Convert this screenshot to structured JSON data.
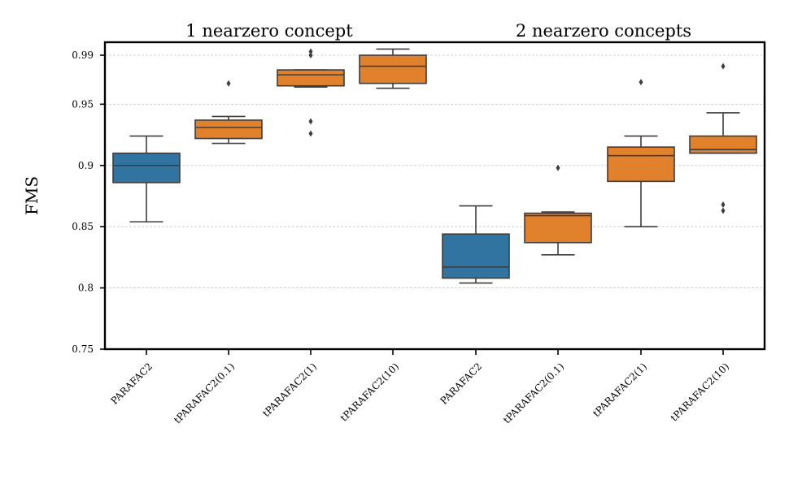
{
  "chart_data": {
    "type": "box",
    "ylabel": "FMS",
    "yticks": [
      "0.75",
      "0.8",
      "0.85",
      "0.9",
      "0.95",
      "0.99"
    ],
    "ytick_values": [
      0.75,
      0.8,
      0.85,
      0.9,
      0.95,
      0.99
    ],
    "ylim": [
      0.75,
      1.0
    ],
    "grid": "horizontal dashed",
    "colors": {
      "PARAFAC2": "#3274a1",
      "tPARAFAC2": "#e1812c"
    },
    "groups": [
      {
        "title": "1 nearzero concept",
        "boxes": [
          {
            "label": "PARAFAC2",
            "color": "#3274a1",
            "whisker_low": 0.854,
            "q1": 0.886,
            "median": 0.9,
            "q3": 0.91,
            "whisker_high": 0.924,
            "outliers": []
          },
          {
            "label": "tPARAFAC2(0.1)",
            "color": "#e1812c",
            "whisker_low": 0.918,
            "q1": 0.922,
            "median": 0.931,
            "q3": 0.937,
            "whisker_high": 0.94,
            "outliers": [
              0.967
            ]
          },
          {
            "label": "tPARAFAC2(1)",
            "color": "#e1812c",
            "whisker_low": 0.964,
            "q1": 0.965,
            "median": 0.974,
            "q3": 0.978,
            "whisker_high": 0.978,
            "outliers": [
              0.926,
              0.936,
              0.99,
              0.993
            ]
          },
          {
            "label": "tPARAFAC2(10)",
            "color": "#e1812c",
            "whisker_low": 0.963,
            "q1": 0.967,
            "median": 0.981,
            "q3": 0.99,
            "whisker_high": 0.995,
            "outliers": []
          }
        ]
      },
      {
        "title": "2 nearzero concepts",
        "boxes": [
          {
            "label": "PARAFAC2",
            "color": "#3274a1",
            "whisker_low": 0.804,
            "q1": 0.808,
            "median": 0.817,
            "q3": 0.844,
            "whisker_high": 0.867,
            "outliers": []
          },
          {
            "label": "tPARAFAC2(0.1)",
            "color": "#e1812c",
            "whisker_low": 0.827,
            "q1": 0.837,
            "median": 0.859,
            "q3": 0.861,
            "whisker_high": 0.862,
            "outliers": [
              0.898
            ]
          },
          {
            "label": "tPARAFAC2(1)",
            "color": "#e1812c",
            "whisker_low": 0.85,
            "q1": 0.887,
            "median": 0.908,
            "q3": 0.915,
            "whisker_high": 0.924,
            "outliers": [
              0.968
            ]
          },
          {
            "label": "tPARAFAC2(10)",
            "color": "#e1812c",
            "whisker_low": 0.91,
            "q1": 0.91,
            "median": 0.913,
            "q3": 0.924,
            "whisker_high": 0.943,
            "outliers": [
              0.863,
              0.868,
              0.981
            ]
          }
        ]
      }
    ]
  }
}
